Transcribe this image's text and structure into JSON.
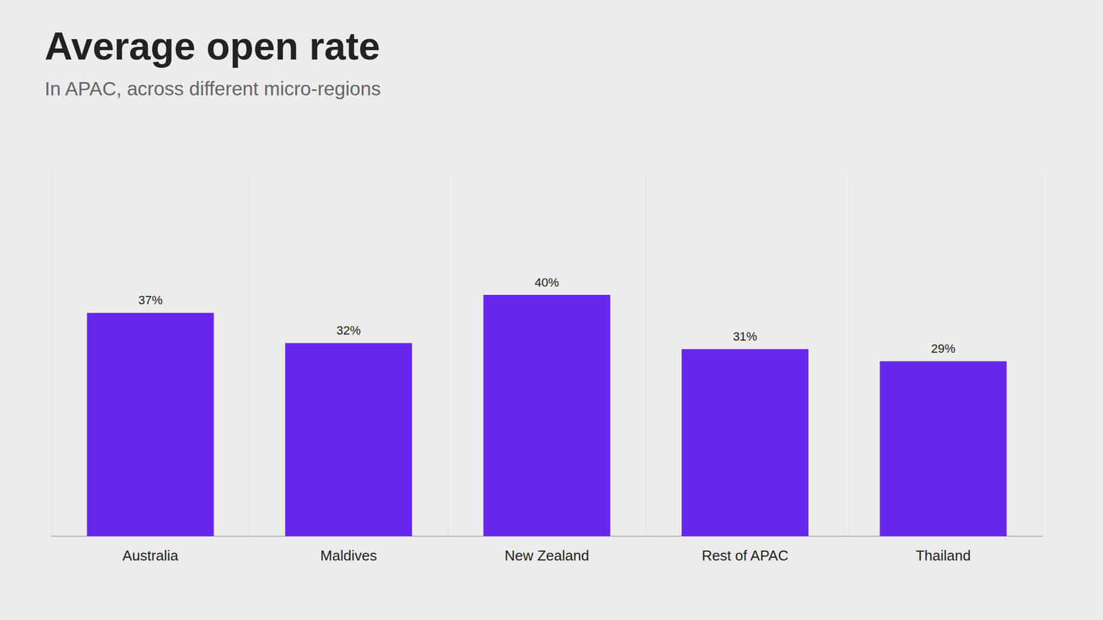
{
  "chart_data": {
    "type": "bar",
    "title": "Average open rate",
    "subtitle": "In APAC, across different micro-regions",
    "categories": [
      "Australia",
      "Maldives",
      "New Zealand",
      "Rest of APAC",
      "Thailand"
    ],
    "values": [
      37,
      32,
      40,
      31,
      29
    ],
    "value_labels": [
      "37%",
      "32%",
      "40%",
      "31%",
      "29%"
    ],
    "color": "#6728ec",
    "ylim": [
      0,
      60
    ],
    "grid": true,
    "data_labels": true,
    "tick_labels": "x"
  }
}
